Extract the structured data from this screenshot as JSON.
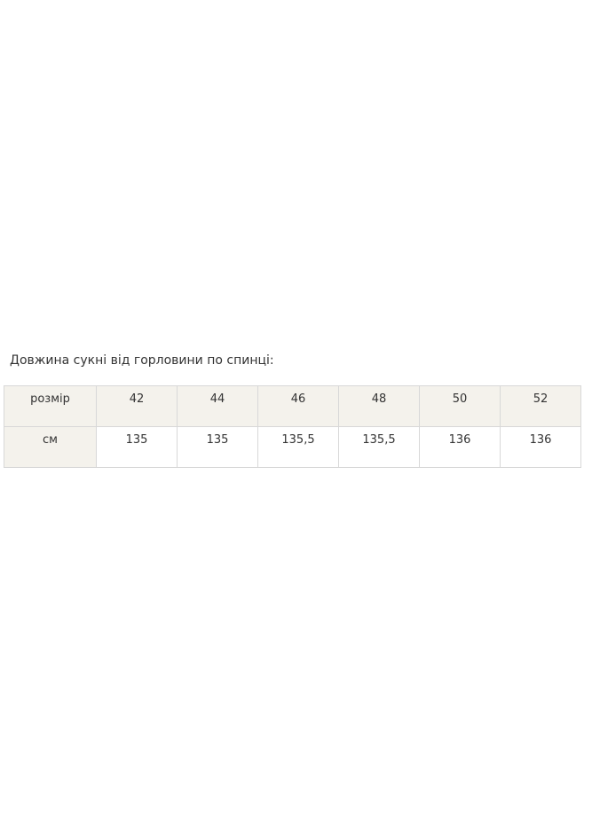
{
  "caption": "Довжина сукні від горловини по спинці:",
  "table": {
    "header": {
      "label": "розмір",
      "values": [
        "42",
        "44",
        "46",
        "48",
        "50",
        "52"
      ]
    },
    "row": {
      "label": "см",
      "values": [
        "135",
        "135",
        "135,5",
        "135,5",
        "136",
        "136"
      ]
    }
  },
  "colors": {
    "header_bg": "#f4f2ec",
    "border": "#d8d8d8"
  }
}
